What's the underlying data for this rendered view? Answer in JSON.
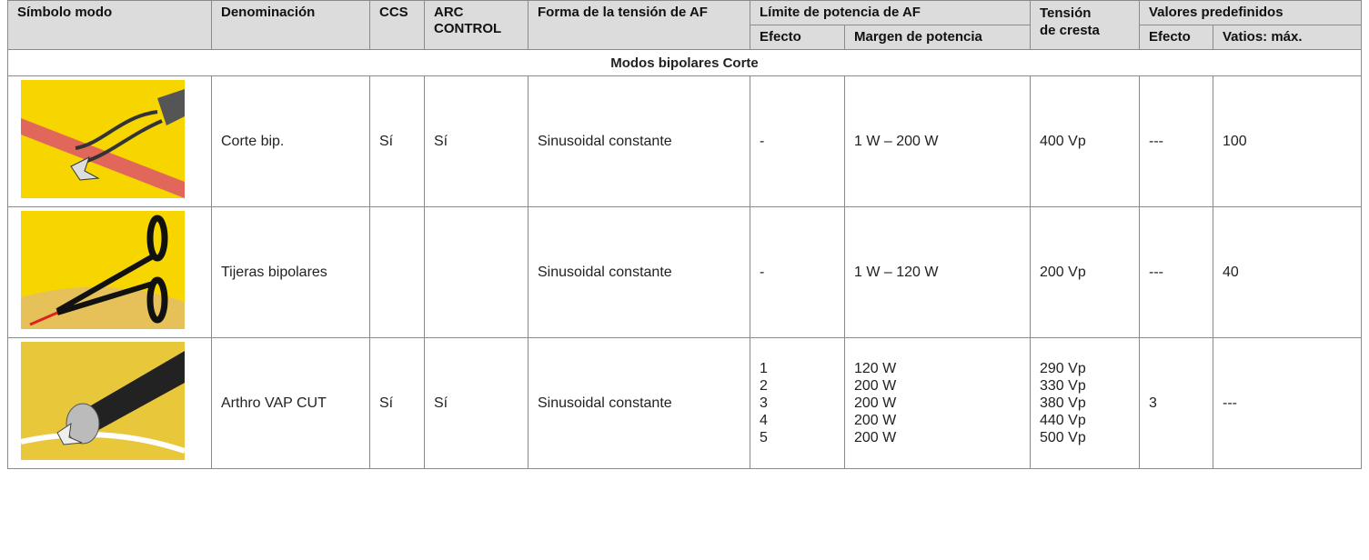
{
  "header": {
    "columns": [
      "Símbolo modo",
      "Denominación",
      "CCS",
      "ARC CONTROL",
      "Forma de la tensión de AF",
      "Límite de potencia de AF",
      [
        "Tensión",
        "de cresta"
      ],
      "Valores predefinidos"
    ],
    "subcolumns": [
      "Efecto",
      "Margen de potencia",
      "Efecto",
      "Vatios: máx."
    ]
  },
  "section": "Modos bipolares Corte",
  "rows": [
    {
      "name": "Corte bip.",
      "ccs": "Sí",
      "arc": "Sí",
      "waveform": "Sinusoidal constante",
      "effect": [
        "-"
      ],
      "power": [
        "1 W – 200 W"
      ],
      "peak": [
        "400 Vp"
      ],
      "preset_effect": "---",
      "preset_watts": "100"
    },
    {
      "name": "Tijeras bipolares",
      "waveform": "Sinusoidal constante",
      "effect": [
        "-"
      ],
      "power": [
        "1 W – 120 W"
      ],
      "peak": [
        "200 Vp"
      ],
      "preset_effect": "---",
      "preset_watts": "40"
    },
    {
      "name": "Arthro VAP CUT",
      "ccs": "Sí",
      "arc": "Sí",
      "waveform": "Sinusoidal constante",
      "effect": [
        "1",
        "2",
        "3",
        "4",
        "5"
      ],
      "power": [
        "120 W",
        "200 W",
        "200 W",
        "200 W",
        "200 W"
      ],
      "peak": [
        "290 Vp",
        "330 Vp",
        "380 Vp",
        "440 Vp",
        "500 Vp"
      ],
      "preset_effect": "3",
      "preset_watts": "---"
    }
  ]
}
